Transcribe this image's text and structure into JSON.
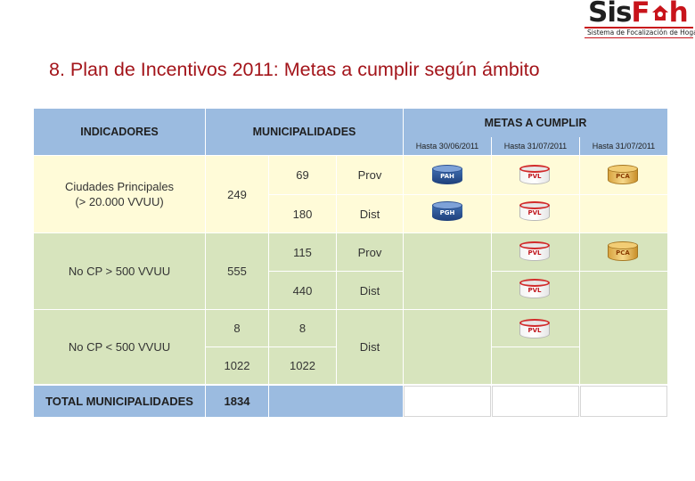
{
  "logo": {
    "word_dark": "Sis",
    "word_red": "F",
    "word_end": "h",
    "subtitle": "Sistema de Focalización de Hogares",
    "brand_color": "#c8141b"
  },
  "title": "8. Plan de Incentivos 2011: Metas a cumplir según ámbito",
  "table": {
    "headers": {
      "indicadores": "INDICADORES",
      "municipalidades": "MUNICIPALIDADES",
      "metas": "METAS A CUMPLIR",
      "dates": [
        "Hasta 30/06/2011",
        "Hasta 31/07/2011",
        "Hasta 31/07/2011"
      ]
    },
    "rows": {
      "ciudades": {
        "label_line1": "Ciudades Principales",
        "label_line2": "(> 20.000 VVUU)",
        "total": "249",
        "prov_count": "69",
        "prov_label": "Prov",
        "dist_count": "180",
        "dist_label": "Dist"
      },
      "cp_mayor": {
        "label": "No CP > 500 VVUU",
        "total": "555",
        "prov_count": "115",
        "prov_label": "Prov",
        "dist_count": "440",
        "dist_label": "Dist"
      },
      "cp_menor": {
        "label": "No CP < 500 VVUU",
        "count_a_left": "8",
        "count_a_right": "8",
        "count_b_left": "1022",
        "count_b_right": "1022",
        "dist_label": "Dist"
      },
      "total": {
        "label": "TOTAL MUNICIPALIDADES",
        "value": "1834"
      }
    },
    "badges": {
      "pah": "PAH",
      "pgh": "PGH",
      "pvl": "PVL",
      "pca": "PCA"
    }
  },
  "colors": {
    "header_blue": "#9bbbe0",
    "yellow_row": "#fffbd8",
    "green_row": "#d7e4bd",
    "title_red": "#a3141a"
  }
}
